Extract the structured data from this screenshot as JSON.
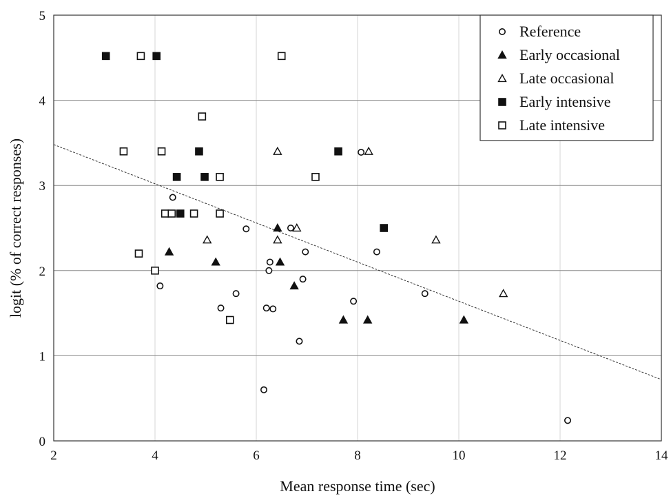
{
  "chart_data": {
    "type": "scatter",
    "xlabel": "Mean response time (sec)",
    "ylabel": "logit (% of correct responses)",
    "xlim": [
      2,
      14
    ],
    "ylim": [
      0,
      5
    ],
    "x_ticks": [
      2,
      4,
      6,
      8,
      10,
      12,
      14
    ],
    "y_ticks": [
      0,
      1,
      2,
      3,
      4,
      5
    ],
    "grid": "both",
    "legend_position": "top-right",
    "trend_line": {
      "style": "dashed",
      "x": [
        2,
        14
      ],
      "y": [
        3.48,
        0.72
      ]
    },
    "series": [
      {
        "name": "Reference",
        "marker": "open-circle",
        "points": [
          {
            "x": 4.1,
            "y": 1.82
          },
          {
            "x": 4.35,
            "y": 2.86
          },
          {
            "x": 5.3,
            "y": 1.56
          },
          {
            "x": 5.6,
            "y": 1.73
          },
          {
            "x": 5.8,
            "y": 2.49
          },
          {
            "x": 6.15,
            "y": 0.6
          },
          {
            "x": 6.2,
            "y": 1.56
          },
          {
            "x": 6.25,
            "y": 2.0
          },
          {
            "x": 6.27,
            "y": 2.1
          },
          {
            "x": 6.33,
            "y": 1.55
          },
          {
            "x": 6.68,
            "y": 2.5
          },
          {
            "x": 6.85,
            "y": 1.17
          },
          {
            "x": 6.92,
            "y": 1.9
          },
          {
            "x": 6.97,
            "y": 2.22
          },
          {
            "x": 7.92,
            "y": 1.64
          },
          {
            "x": 8.07,
            "y": 3.39
          },
          {
            "x": 8.38,
            "y": 2.22
          },
          {
            "x": 9.33,
            "y": 1.73
          },
          {
            "x": 12.15,
            "y": 0.24
          }
        ]
      },
      {
        "name": "Early occasional",
        "marker": "filled-triangle",
        "points": [
          {
            "x": 4.28,
            "y": 2.22
          },
          {
            "x": 5.2,
            "y": 2.1
          },
          {
            "x": 6.42,
            "y": 2.5
          },
          {
            "x": 6.47,
            "y": 2.1
          },
          {
            "x": 6.75,
            "y": 1.82
          },
          {
            "x": 7.72,
            "y": 1.42
          },
          {
            "x": 8.2,
            "y": 1.42
          },
          {
            "x": 10.1,
            "y": 1.42
          }
        ]
      },
      {
        "name": "Late occasional",
        "marker": "open-triangle",
        "points": [
          {
            "x": 5.03,
            "y": 2.36
          },
          {
            "x": 6.42,
            "y": 2.36
          },
          {
            "x": 6.42,
            "y": 3.4
          },
          {
            "x": 6.8,
            "y": 2.5
          },
          {
            "x": 8.22,
            "y": 3.4
          },
          {
            "x": 9.55,
            "y": 2.36
          },
          {
            "x": 10.88,
            "y": 1.73
          }
        ]
      },
      {
        "name": "Early intensive",
        "marker": "filled-square",
        "points": [
          {
            "x": 3.03,
            "y": 4.52
          },
          {
            "x": 4.03,
            "y": 4.52
          },
          {
            "x": 4.43,
            "y": 3.1
          },
          {
            "x": 4.5,
            "y": 2.67
          },
          {
            "x": 4.87,
            "y": 3.4
          },
          {
            "x": 4.98,
            "y": 3.1
          },
          {
            "x": 7.62,
            "y": 3.4
          },
          {
            "x": 8.52,
            "y": 2.5
          }
        ]
      },
      {
        "name": "Late intensive",
        "marker": "open-square",
        "points": [
          {
            "x": 3.38,
            "y": 3.4
          },
          {
            "x": 3.68,
            "y": 2.2
          },
          {
            "x": 3.72,
            "y": 4.52
          },
          {
            "x": 4.0,
            "y": 2.0
          },
          {
            "x": 4.13,
            "y": 3.4
          },
          {
            "x": 4.2,
            "y": 2.67
          },
          {
            "x": 4.33,
            "y": 2.67
          },
          {
            "x": 4.77,
            "y": 2.67
          },
          {
            "x": 4.93,
            "y": 3.81
          },
          {
            "x": 5.28,
            "y": 2.67
          },
          {
            "x": 5.28,
            "y": 3.1
          },
          {
            "x": 5.48,
            "y": 1.42
          },
          {
            "x": 6.5,
            "y": 4.52
          },
          {
            "x": 7.17,
            "y": 3.1
          }
        ]
      }
    ]
  }
}
